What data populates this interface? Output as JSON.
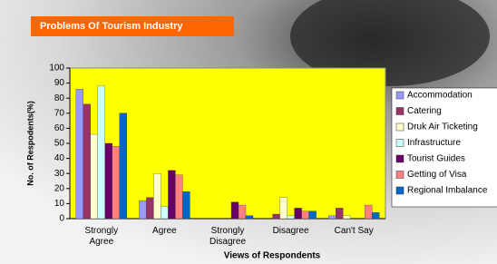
{
  "chart_data": {
    "type": "bar",
    "title": "Problems Of Tourism Industry",
    "x_label": "Views of Respondents",
    "y_label": "No. of Respodents(%)",
    "categories": [
      "Strongly Agree",
      "Agree",
      "Strongly Disagree",
      "Disagree",
      "Can't Say"
    ],
    "series": [
      {
        "name": "Accommodation",
        "color": "#9999ff",
        "values": [
          86,
          12,
          0,
          0,
          2
        ]
      },
      {
        "name": "Catering",
        "color": "#993366",
        "values": [
          76,
          14,
          0,
          3,
          7
        ]
      },
      {
        "name": "Druk Air Ticketing",
        "color": "#ffffcc",
        "values": [
          56,
          30,
          0,
          14,
          2
        ]
      },
      {
        "name": "Infrastructure",
        "color": "#ccffff",
        "values": [
          88,
          8,
          0,
          2,
          0
        ]
      },
      {
        "name": "Tourist Guides",
        "color": "#660066",
        "values": [
          50,
          32,
          11,
          7,
          0
        ]
      },
      {
        "name": "Getting of Visa",
        "color": "#ff8080",
        "values": [
          48,
          29,
          9,
          5,
          9
        ]
      },
      {
        "name": "Regional Imbalance",
        "color": "#0066cc",
        "values": [
          70,
          18,
          2,
          5,
          4
        ]
      }
    ],
    "ylim": [
      0,
      100
    ],
    "yticks": [
      0,
      10,
      20,
      30,
      40,
      50,
      60,
      70,
      80,
      90,
      100
    ],
    "plot_color": "#ffff00",
    "legend": "right"
  }
}
